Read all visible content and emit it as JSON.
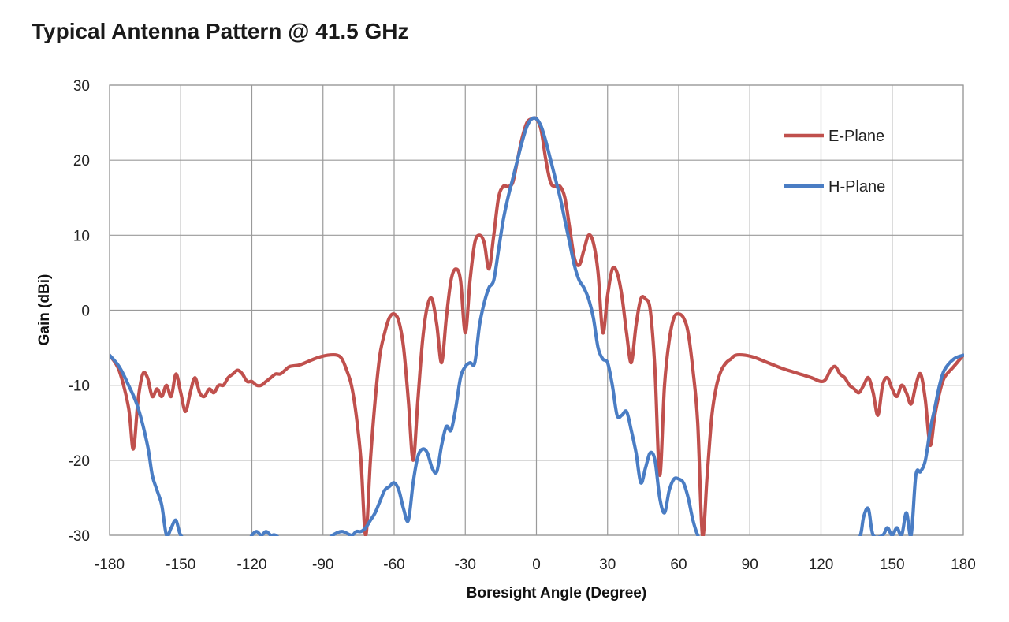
{
  "chart_data": {
    "type": "line",
    "title": "Typical Antenna Pattern @ 41.5 GHz",
    "xlabel": "Boresight Angle (Degree)",
    "ylabel": "Gain (dBi)",
    "xlim": [
      -180,
      180
    ],
    "ylim": [
      -30,
      30
    ],
    "xticks": [
      -180,
      -150,
      -120,
      -90,
      -60,
      -30,
      0,
      30,
      60,
      90,
      120,
      150,
      180
    ],
    "yticks": [
      30,
      20,
      10,
      0,
      -10,
      -20,
      -30
    ],
    "grid": true,
    "legend_position": "top-right",
    "series": [
      {
        "name": "E-Plane",
        "color": "#c0504d",
        "points": [
          [
            -180,
            -6
          ],
          [
            -176,
            -8
          ],
          [
            -172,
            -13
          ],
          [
            -170,
            -18.5
          ],
          [
            -168,
            -12
          ],
          [
            -166,
            -8.5
          ],
          [
            -164,
            -9
          ],
          [
            -162,
            -11.5
          ],
          [
            -160,
            -10.5
          ],
          [
            -158,
            -11.5
          ],
          [
            -156,
            -10
          ],
          [
            -154,
            -11.5
          ],
          [
            -152,
            -8.5
          ],
          [
            -150,
            -11
          ],
          [
            -148,
            -13.5
          ],
          [
            -146,
            -11
          ],
          [
            -144,
            -9
          ],
          [
            -142,
            -11
          ],
          [
            -140,
            -11.5
          ],
          [
            -138,
            -10.5
          ],
          [
            -136,
            -11
          ],
          [
            -134,
            -10
          ],
          [
            -132,
            -10
          ],
          [
            -130,
            -9
          ],
          [
            -128,
            -8.5
          ],
          [
            -126,
            -8
          ],
          [
            -124,
            -8.5
          ],
          [
            -122,
            -9.5
          ],
          [
            -120,
            -9.5
          ],
          [
            -118,
            -10
          ],
          [
            -116,
            -10
          ],
          [
            -114,
            -9.5
          ],
          [
            -112,
            -9
          ],
          [
            -110,
            -8.5
          ],
          [
            -108,
            -8.5
          ],
          [
            -106,
            -8
          ],
          [
            -104,
            -7.5
          ],
          [
            -100,
            -7.3
          ],
          [
            -96,
            -6.8
          ],
          [
            -92,
            -6.3
          ],
          [
            -88,
            -6
          ],
          [
            -84,
            -6
          ],
          [
            -82,
            -6.5
          ],
          [
            -80,
            -8
          ],
          [
            -78,
            -10
          ],
          [
            -76,
            -14
          ],
          [
            -74,
            -20
          ],
          [
            -72,
            -30
          ],
          [
            -70,
            -20
          ],
          [
            -68,
            -12
          ],
          [
            -66,
            -6
          ],
          [
            -64,
            -3
          ],
          [
            -62,
            -1
          ],
          [
            -60,
            -0.5
          ],
          [
            -58,
            -1.5
          ],
          [
            -56,
            -5
          ],
          [
            -54,
            -12
          ],
          [
            -52,
            -20
          ],
          [
            -50,
            -12
          ],
          [
            -48,
            -4
          ],
          [
            -46,
            0.5
          ],
          [
            -44,
            1.5
          ],
          [
            -42,
            -2
          ],
          [
            -40,
            -7
          ],
          [
            -38,
            -1
          ],
          [
            -36,
            4
          ],
          [
            -34,
            5.5
          ],
          [
            -32,
            4
          ],
          [
            -30,
            -3
          ],
          [
            -28,
            4
          ],
          [
            -26,
            9
          ],
          [
            -24,
            10
          ],
          [
            -22,
            9
          ],
          [
            -20,
            5.5
          ],
          [
            -18,
            10
          ],
          [
            -16,
            15
          ],
          [
            -14,
            16.5
          ],
          [
            -12,
            16.5
          ],
          [
            -10,
            17
          ],
          [
            -8,
            20
          ],
          [
            -6,
            23
          ],
          [
            -4,
            25
          ],
          [
            -2,
            25.5
          ],
          [
            0,
            25.5
          ],
          [
            2,
            24
          ],
          [
            4,
            20
          ],
          [
            6,
            17
          ],
          [
            8,
            16.5
          ],
          [
            10,
            16.5
          ],
          [
            12,
            15
          ],
          [
            14,
            11
          ],
          [
            16,
            7
          ],
          [
            18,
            6
          ],
          [
            20,
            8
          ],
          [
            22,
            10
          ],
          [
            24,
            9
          ],
          [
            26,
            5
          ],
          [
            28,
            -3
          ],
          [
            30,
            2
          ],
          [
            32,
            5.5
          ],
          [
            34,
            5
          ],
          [
            36,
            2
          ],
          [
            38,
            -3
          ],
          [
            40,
            -7
          ],
          [
            42,
            -2
          ],
          [
            44,
            1.5
          ],
          [
            46,
            1.5
          ],
          [
            48,
            0
          ],
          [
            50,
            -8
          ],
          [
            52,
            -22
          ],
          [
            54,
            -10
          ],
          [
            56,
            -4
          ],
          [
            58,
            -1
          ],
          [
            60,
            -0.5
          ],
          [
            62,
            -1
          ],
          [
            64,
            -3
          ],
          [
            66,
            -8
          ],
          [
            68,
            -15
          ],
          [
            70,
            -30
          ],
          [
            72,
            -22
          ],
          [
            74,
            -14
          ],
          [
            76,
            -10
          ],
          [
            78,
            -8
          ],
          [
            80,
            -7
          ],
          [
            82,
            -6.5
          ],
          [
            84,
            -6
          ],
          [
            88,
            -6
          ],
          [
            92,
            -6.3
          ],
          [
            96,
            -6.8
          ],
          [
            100,
            -7.3
          ],
          [
            104,
            -7.8
          ],
          [
            108,
            -8.2
          ],
          [
            112,
            -8.6
          ],
          [
            116,
            -9
          ],
          [
            120,
            -9.5
          ],
          [
            122,
            -9.2
          ],
          [
            124,
            -8
          ],
          [
            126,
            -7.5
          ],
          [
            128,
            -8.5
          ],
          [
            130,
            -9
          ],
          [
            132,
            -10
          ],
          [
            134,
            -10.5
          ],
          [
            136,
            -11
          ],
          [
            138,
            -10
          ],
          [
            140,
            -9
          ],
          [
            142,
            -11
          ],
          [
            144,
            -14
          ],
          [
            146,
            -10
          ],
          [
            148,
            -9
          ],
          [
            150,
            -10.5
          ],
          [
            152,
            -11.5
          ],
          [
            154,
            -10
          ],
          [
            156,
            -11
          ],
          [
            158,
            -12.5
          ],
          [
            160,
            -10
          ],
          [
            162,
            -8.5
          ],
          [
            164,
            -12
          ],
          [
            166,
            -18
          ],
          [
            168,
            -14
          ],
          [
            170,
            -11
          ],
          [
            172,
            -9
          ],
          [
            176,
            -7.5
          ],
          [
            180,
            -6
          ]
        ]
      },
      {
        "name": "H-Plane",
        "color": "#4a7dc4",
        "points": [
          [
            -180,
            -6
          ],
          [
            -176,
            -7.5
          ],
          [
            -172,
            -10
          ],
          [
            -168,
            -13
          ],
          [
            -164,
            -18
          ],
          [
            -162,
            -22
          ],
          [
            -160,
            -24
          ],
          [
            -158,
            -26
          ],
          [
            -156,
            -30
          ],
          [
            -154,
            -29
          ],
          [
            -152,
            -28
          ],
          [
            -150,
            -30
          ],
          [
            -146,
            -31
          ],
          [
            -140,
            -31
          ],
          [
            -130,
            -31
          ],
          [
            -122,
            -31
          ],
          [
            -120,
            -30
          ],
          [
            -118,
            -29.5
          ],
          [
            -116,
            -30
          ],
          [
            -114,
            -29.5
          ],
          [
            -112,
            -30
          ],
          [
            -110,
            -30
          ],
          [
            -106,
            -31
          ],
          [
            -100,
            -31
          ],
          [
            -90,
            -31
          ],
          [
            -86,
            -30
          ],
          [
            -82,
            -29.5
          ],
          [
            -78,
            -30
          ],
          [
            -76,
            -29.5
          ],
          [
            -74,
            -29.5
          ],
          [
            -72,
            -29
          ],
          [
            -70,
            -28
          ],
          [
            -68,
            -27
          ],
          [
            -66,
            -25.5
          ],
          [
            -64,
            -24
          ],
          [
            -62,
            -23.5
          ],
          [
            -60,
            -23
          ],
          [
            -58,
            -24
          ],
          [
            -56,
            -26.5
          ],
          [
            -54,
            -28
          ],
          [
            -52,
            -23
          ],
          [
            -50,
            -19.5
          ],
          [
            -48,
            -18.5
          ],
          [
            -46,
            -19
          ],
          [
            -44,
            -21
          ],
          [
            -42,
            -21.5
          ],
          [
            -40,
            -18
          ],
          [
            -38,
            -15.5
          ],
          [
            -36,
            -16
          ],
          [
            -34,
            -13
          ],
          [
            -32,
            -9
          ],
          [
            -30,
            -7.5
          ],
          [
            -28,
            -7
          ],
          [
            -26,
            -7
          ],
          [
            -24,
            -2
          ],
          [
            -22,
            1
          ],
          [
            -20,
            3
          ],
          [
            -18,
            4
          ],
          [
            -16,
            8
          ],
          [
            -14,
            12
          ],
          [
            -12,
            15
          ],
          [
            -10,
            17.5
          ],
          [
            -8,
            20
          ],
          [
            -6,
            22.5
          ],
          [
            -4,
            24.5
          ],
          [
            -2,
            25.5
          ],
          [
            0,
            25.5
          ],
          [
            2,
            24.5
          ],
          [
            4,
            22.5
          ],
          [
            6,
            20
          ],
          [
            8,
            17.5
          ],
          [
            10,
            15
          ],
          [
            12,
            12
          ],
          [
            14,
            9
          ],
          [
            16,
            6
          ],
          [
            18,
            4
          ],
          [
            20,
            3
          ],
          [
            22,
            1.5
          ],
          [
            24,
            -1
          ],
          [
            26,
            -5
          ],
          [
            28,
            -6.5
          ],
          [
            30,
            -7
          ],
          [
            32,
            -10
          ],
          [
            34,
            -14
          ],
          [
            36,
            -14
          ],
          [
            38,
            -13.5
          ],
          [
            40,
            -16
          ],
          [
            42,
            -19
          ],
          [
            44,
            -23
          ],
          [
            46,
            -21
          ],
          [
            48,
            -19
          ],
          [
            50,
            -20
          ],
          [
            52,
            -25
          ],
          [
            54,
            -27
          ],
          [
            56,
            -24
          ],
          [
            58,
            -22.5
          ],
          [
            60,
            -22.5
          ],
          [
            62,
            -23
          ],
          [
            64,
            -25
          ],
          [
            66,
            -28
          ],
          [
            68,
            -30
          ],
          [
            70,
            -31
          ],
          [
            80,
            -31
          ],
          [
            100,
            -31
          ],
          [
            130,
            -31
          ],
          [
            136,
            -30.5
          ],
          [
            138,
            -27.5
          ],
          [
            140,
            -26.5
          ],
          [
            142,
            -30
          ],
          [
            146,
            -30
          ],
          [
            148,
            -29
          ],
          [
            150,
            -30
          ],
          [
            152,
            -29
          ],
          [
            154,
            -30
          ],
          [
            156,
            -27
          ],
          [
            158,
            -30
          ],
          [
            160,
            -22
          ],
          [
            162,
            -21.5
          ],
          [
            164,
            -20
          ],
          [
            166,
            -16
          ],
          [
            168,
            -13
          ],
          [
            170,
            -10
          ],
          [
            172,
            -8
          ],
          [
            176,
            -6.5
          ],
          [
            180,
            -6
          ]
        ]
      }
    ]
  }
}
